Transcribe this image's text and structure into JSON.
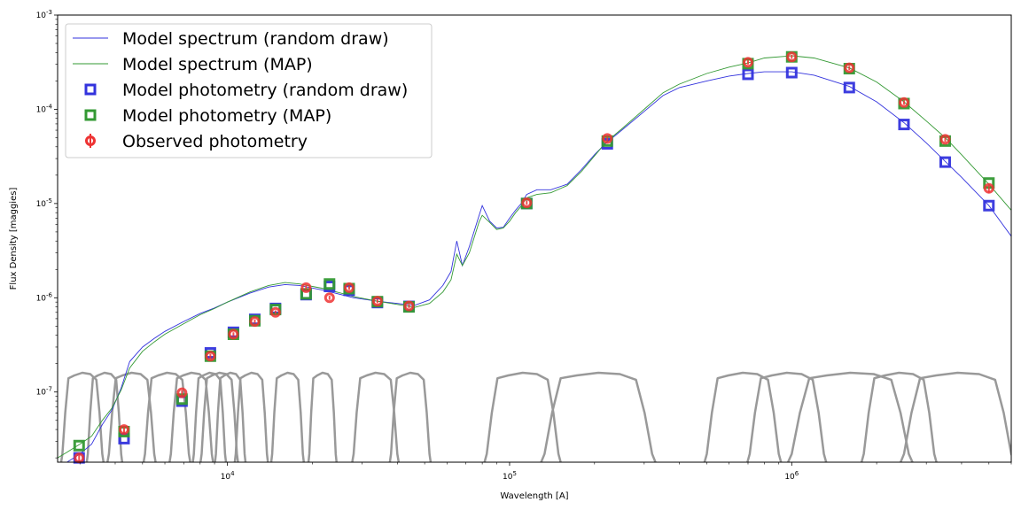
{
  "chart_data": {
    "type": "scatter",
    "xlabel": "Wavelength [A]",
    "ylabel": "Flux Density [maggies]",
    "xscale": "log",
    "yscale": "log",
    "xlim": [
      2500,
      6000000
    ],
    "ylim": [
      1.8e-08,
      0.001
    ],
    "grid": false,
    "legend_position": "top-left",
    "x_ticks": [
      {
        "value": 10000,
        "label": "10^4"
      },
      {
        "value": 100000,
        "label": "10^5"
      },
      {
        "value": 1000000,
        "label": "10^6"
      }
    ],
    "y_ticks": [
      {
        "value": 1e-07,
        "label": "10^-7"
      },
      {
        "value": 1e-06,
        "label": "10^-6"
      },
      {
        "value": 1e-05,
        "label": "10^-5"
      },
      {
        "value": 0.0001,
        "label": "10^-4"
      },
      {
        "value": 0.001,
        "label": "10^-3"
      }
    ],
    "colors": {
      "random_draw": "#3333dd",
      "map": "#339933",
      "observed": "#ee3333",
      "filters": "#999999"
    },
    "series": [
      {
        "name": "Model spectrum (random draw)",
        "kind": "line",
        "points": [
          [
            2500,
            1.5e-08
          ],
          [
            2700,
            1.8e-08
          ],
          [
            3000,
            2.2e-08
          ],
          [
            3300,
            2.8e-08
          ],
          [
            3600,
            4.5e-08
          ],
          [
            3900,
            6.5e-08
          ],
          [
            4200,
            1.1e-07
          ],
          [
            4500,
            2.1e-07
          ],
          [
            5000,
            3e-07
          ],
          [
            5500,
            3.7e-07
          ],
          [
            6000,
            4.4e-07
          ],
          [
            7000,
            5.6e-07
          ],
          [
            8000,
            6.8e-07
          ],
          [
            9000,
            7.8e-07
          ],
          [
            10000,
            9e-07
          ],
          [
            12000,
            1.12e-06
          ],
          [
            14000,
            1.3e-06
          ],
          [
            16000,
            1.38e-06
          ],
          [
            18000,
            1.35e-06
          ],
          [
            22000,
            1.2e-06
          ],
          [
            28000,
            1e-06
          ],
          [
            34000,
            9.2e-07
          ],
          [
            40000,
            8.7e-07
          ],
          [
            46000,
            8.3e-07
          ],
          [
            52000,
            9.5e-07
          ],
          [
            58000,
            1.35e-06
          ],
          [
            62000,
            1.9e-06
          ],
          [
            65000,
            4e-06
          ],
          [
            68000,
            2.2e-06
          ],
          [
            72000,
            3.5e-06
          ],
          [
            78000,
            7.5e-06
          ],
          [
            80000,
            9.5e-06
          ],
          [
            85000,
            6.5e-06
          ],
          [
            90000,
            5.5e-06
          ],
          [
            95000,
            5.6e-06
          ],
          [
            100000,
            7e-06
          ],
          [
            105000,
            8.5e-06
          ],
          [
            110000,
            1e-05
          ],
          [
            115000,
            1.25e-05
          ],
          [
            125000,
            1.4e-05
          ],
          [
            140000,
            1.4e-05
          ],
          [
            160000,
            1.6e-05
          ],
          [
            180000,
            2.3e-05
          ],
          [
            200000,
            3.3e-05
          ],
          [
            220000,
            4.4e-05
          ],
          [
            250000,
            6e-05
          ],
          [
            300000,
            9.5e-05
          ],
          [
            350000,
            0.00014
          ],
          [
            400000,
            0.00017
          ],
          [
            500000,
            0.0002
          ],
          [
            600000,
            0.000225
          ],
          [
            700000,
            0.00024
          ],
          [
            800000,
            0.00025
          ],
          [
            1000000,
            0.00025
          ],
          [
            1200000,
            0.00023
          ],
          [
            1600000,
            0.000175
          ],
          [
            2000000,
            0.00012
          ],
          [
            2500000,
            7.2e-05
          ],
          [
            3000000,
            4.4e-05
          ],
          [
            3500000,
            2.8e-05
          ],
          [
            4000000,
            1.9e-05
          ],
          [
            5000000,
            9.5e-06
          ],
          [
            6000000,
            4.5e-06
          ]
        ]
      },
      {
        "name": "Model spectrum (MAP)",
        "kind": "line",
        "points": [
          [
            2500,
            2e-08
          ],
          [
            2700,
            2.3e-08
          ],
          [
            3000,
            2.8e-08
          ],
          [
            3300,
            3.4e-08
          ],
          [
            3600,
            5e-08
          ],
          [
            3900,
            6.8e-08
          ],
          [
            4200,
            1.05e-07
          ],
          [
            4500,
            1.8e-07
          ],
          [
            5000,
            2.7e-07
          ],
          [
            5500,
            3.4e-07
          ],
          [
            6000,
            4.1e-07
          ],
          [
            7000,
            5.3e-07
          ],
          [
            8000,
            6.6e-07
          ],
          [
            9000,
            7.7e-07
          ],
          [
            10000,
            9e-07
          ],
          [
            12000,
            1.15e-06
          ],
          [
            14000,
            1.35e-06
          ],
          [
            16000,
            1.45e-06
          ],
          [
            18000,
            1.4e-06
          ],
          [
            22000,
            1.25e-06
          ],
          [
            28000,
            1.03e-06
          ],
          [
            34000,
            9.2e-07
          ],
          [
            40000,
            8.5e-07
          ],
          [
            46000,
            7.9e-07
          ],
          [
            52000,
            8.7e-07
          ],
          [
            58000,
            1.15e-06
          ],
          [
            62000,
            1.55e-06
          ],
          [
            65000,
            2.9e-06
          ],
          [
            68000,
            2.2e-06
          ],
          [
            72000,
            3e-06
          ],
          [
            78000,
            6.4e-06
          ],
          [
            80000,
            7.5e-06
          ],
          [
            85000,
            6.3e-06
          ],
          [
            90000,
            5.3e-06
          ],
          [
            95000,
            5.5e-06
          ],
          [
            100000,
            6.5e-06
          ],
          [
            105000,
            8e-06
          ],
          [
            110000,
            9.4e-06
          ],
          [
            115000,
            1.15e-05
          ],
          [
            125000,
            1.25e-05
          ],
          [
            140000,
            1.3e-05
          ],
          [
            160000,
            1.55e-05
          ],
          [
            180000,
            2.2e-05
          ],
          [
            200000,
            3.2e-05
          ],
          [
            220000,
            4.5e-05
          ],
          [
            250000,
            6.2e-05
          ],
          [
            300000,
            0.0001
          ],
          [
            350000,
            0.00015
          ],
          [
            400000,
            0.000185
          ],
          [
            500000,
            0.00024
          ],
          [
            600000,
            0.00028
          ],
          [
            700000,
            0.00031
          ],
          [
            800000,
            0.00035
          ],
          [
            1000000,
            0.00037
          ],
          [
            1200000,
            0.00035
          ],
          [
            1600000,
            0.000275
          ],
          [
            2000000,
            0.000195
          ],
          [
            2500000,
            0.00012
          ],
          [
            3000000,
            7.5e-05
          ],
          [
            3500000,
            5e-05
          ],
          [
            4000000,
            3.3e-05
          ],
          [
            5000000,
            1.6e-05
          ],
          [
            6000000,
            8.5e-06
          ]
        ]
      },
      {
        "name": "Model photometry (random draw)",
        "kind": "square",
        "points": [
          [
            2980,
            2e-08
          ],
          [
            4300,
            3.2e-08
          ],
          [
            6900,
            8e-08
          ],
          [
            8700,
            2.6e-07
          ],
          [
            10500,
            4.3e-07
          ],
          [
            12500,
            5.9e-07
          ],
          [
            14800,
            7.7e-07
          ],
          [
            19000,
            1.08e-06
          ],
          [
            23000,
            1.32e-06
          ],
          [
            27000,
            1.2e-06
          ],
          [
            34000,
            8.9e-07
          ],
          [
            44000,
            8.1e-07
          ],
          [
            115000,
            1e-05
          ],
          [
            222000,
            4.3e-05
          ],
          [
            700000,
            0.000235
          ],
          [
            1000000,
            0.000245
          ],
          [
            1600000,
            0.00017
          ],
          [
            2500000,
            6.9e-05
          ],
          [
            3500000,
            2.75e-05
          ],
          [
            5000000,
            9.5e-06
          ]
        ]
      },
      {
        "name": "Model photometry (MAP)",
        "kind": "square",
        "points": [
          [
            2980,
            2.7e-08
          ],
          [
            4300,
            3.8e-08
          ],
          [
            6900,
            8.4e-08
          ],
          [
            8700,
            2.4e-07
          ],
          [
            10500,
            4.1e-07
          ],
          [
            12500,
            5.7e-07
          ],
          [
            14800,
            7.5e-07
          ],
          [
            19000,
            1.1e-06
          ],
          [
            23000,
            1.4e-06
          ],
          [
            27000,
            1.25e-06
          ],
          [
            34000,
            9.1e-07
          ],
          [
            44000,
            8e-07
          ],
          [
            115000,
            1e-05
          ],
          [
            222000,
            4.6e-05
          ],
          [
            700000,
            0.000305
          ],
          [
            1000000,
            0.00036
          ],
          [
            1600000,
            0.00027
          ],
          [
            2500000,
            0.000115
          ],
          [
            3500000,
            4.6e-05
          ],
          [
            5000000,
            1.65e-05
          ]
        ]
      },
      {
        "name": "Observed photometry",
        "kind": "errorbar",
        "points": [
          [
            2980,
            2e-08
          ],
          [
            4300,
            4e-08
          ],
          [
            6900,
            9.8e-08
          ],
          [
            8700,
            2.4e-07
          ],
          [
            10500,
            4.1e-07
          ],
          [
            12500,
            5.6e-07
          ],
          [
            14800,
            7e-07
          ],
          [
            19000,
            1.28e-06
          ],
          [
            23000,
            1e-06
          ],
          [
            27000,
            1.28e-06
          ],
          [
            34000,
            9.2e-07
          ],
          [
            44000,
            8.2e-07
          ],
          [
            115000,
            1.02e-05
          ],
          [
            222000,
            4.9e-05
          ],
          [
            700000,
            0.000315
          ],
          [
            1000000,
            0.00036
          ],
          [
            1600000,
            0.000275
          ],
          [
            2500000,
            0.000118
          ],
          [
            3500000,
            4.8e-05
          ],
          [
            5000000,
            1.45e-05
          ]
        ],
        "errors": [
          [
            2980,
            0.08
          ],
          [
            4300,
            0.08
          ],
          [
            6900,
            0.06
          ],
          [
            8700,
            0.06
          ],
          [
            10500,
            0.05
          ],
          [
            12500,
            0.05
          ],
          [
            14800,
            0.05
          ],
          [
            19000,
            0.06
          ],
          [
            23000,
            0.05
          ],
          [
            27000,
            0.05
          ],
          [
            34000,
            0.05
          ],
          [
            44000,
            0.05
          ],
          [
            115000,
            0.05
          ],
          [
            222000,
            0.06
          ],
          [
            700000,
            0.05
          ],
          [
            1000000,
            0.05
          ],
          [
            1600000,
            0.05
          ],
          [
            2500000,
            0.05
          ],
          [
            3500000,
            0.06
          ],
          [
            5000000,
            0.1
          ]
        ]
      }
    ],
    "filter_curves": [
      {
        "lo": 2600,
        "hi": 3600
      },
      {
        "lo": 3200,
        "hi": 4200
      },
      {
        "lo": 3800,
        "hi": 5500
      },
      {
        "lo": 5100,
        "hi": 7300
      },
      {
        "lo": 6300,
        "hi": 8800
      },
      {
        "lo": 7600,
        "hi": 9800
      },
      {
        "lo": 8100,
        "hi": 10800
      },
      {
        "lo": 9100,
        "hi": 11500
      },
      {
        "lo": 10700,
        "hi": 13800
      },
      {
        "lo": 14400,
        "hi": 18500
      },
      {
        "lo": 19500,
        "hi": 24200
      },
      {
        "lo": 28000,
        "hi": 40000
      },
      {
        "lo": 38000,
        "hi": 52000
      },
      {
        "lo": 83000,
        "hi": 149000
      },
      {
        "lo": 133000,
        "hi": 320000
      },
      {
        "lo": 500000,
        "hi": 900000
      },
      {
        "lo": 710000,
        "hi": 1300000
      },
      {
        "lo": 1000000,
        "hi": 2600000
      },
      {
        "lo": 1800000,
        "hi": 3200000
      },
      {
        "lo": 2500000,
        "hi": 6000000
      }
    ],
    "legend": [
      {
        "label": "Model spectrum (random draw)",
        "kind": "line",
        "color_key": "random_draw"
      },
      {
        "label": "Model spectrum (MAP)",
        "kind": "line",
        "color_key": "map"
      },
      {
        "label": "Model photometry (random draw)",
        "kind": "square",
        "color_key": "random_draw"
      },
      {
        "label": "Model photometry (MAP)",
        "kind": "square",
        "color_key": "map"
      },
      {
        "label": "Observed photometry",
        "kind": "errorbar",
        "color_key": "observed"
      }
    ]
  }
}
